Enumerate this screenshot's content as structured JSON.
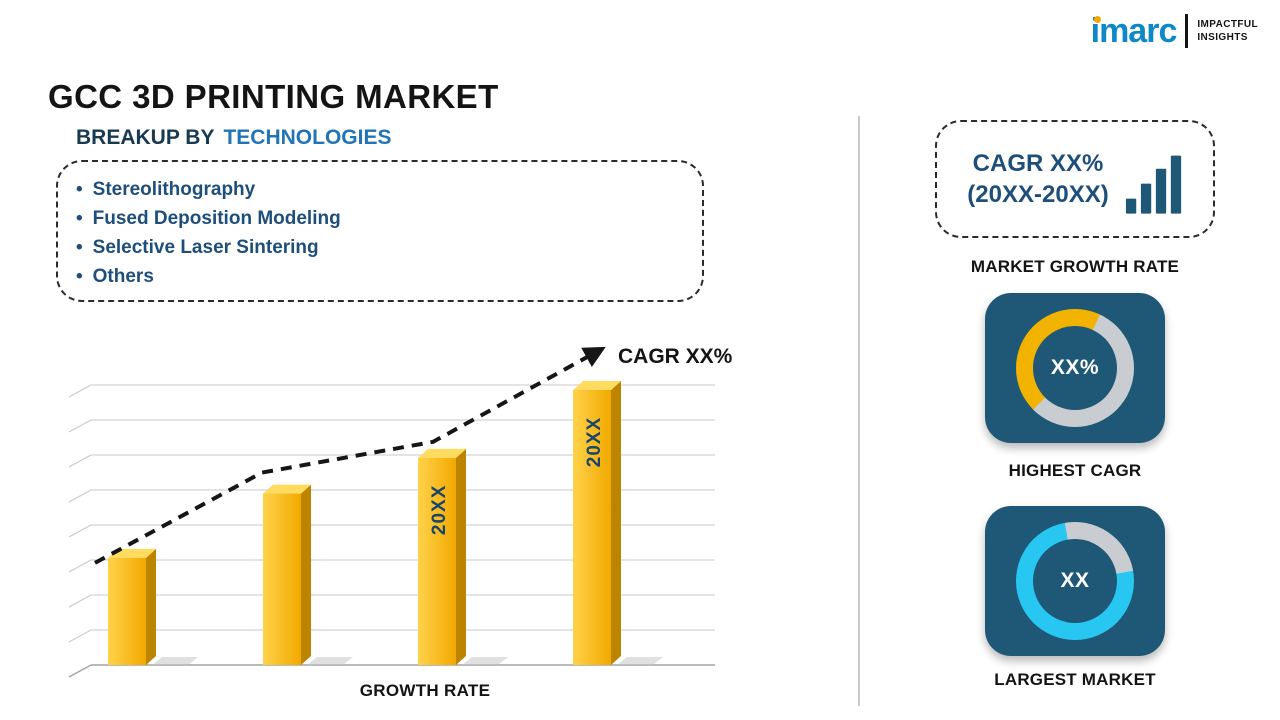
{
  "logo": {
    "brand": "imarc",
    "tagline_top": "IMPACTFUL",
    "tagline_bottom": "INSIGHTS"
  },
  "page_title": "GCC 3D PRINTING MARKET",
  "breakup": {
    "heading_prefix": "BREAKUP BY",
    "heading_highlight": "TECHNOLOGIES",
    "items": [
      "Stereolithography",
      "Fused Deposition Modeling",
      "Selective Laser Sintering",
      "Others"
    ]
  },
  "chart_data": {
    "type": "bar",
    "title": "",
    "bar_labels": [
      "",
      "",
      "20XX",
      "20XX"
    ],
    "values": [
      30,
      48,
      58,
      77
    ],
    "xlabel": "GROWTH RATE",
    "ylabel": "",
    "trend_label": "CAGR XX%",
    "bar_color": "#FFC000",
    "grid": true,
    "legend": false
  },
  "sidebar": {
    "growth_box": {
      "line1": "CAGR XX%",
      "line2": "(20XX-20XX)",
      "icon": "bar-chart-icon",
      "caption": "MARKET GROWTH RATE"
    },
    "highest_cagr": {
      "center_text": "XX%",
      "caption": "HIGHEST CAGR",
      "arc_color": "#F2B200",
      "track_color": "#C9CDD2",
      "arc_start_deg": 225,
      "arc_sweep_deg": 160
    },
    "largest_market": {
      "center_text": "XX",
      "caption": "LARGEST MARKET",
      "arc_color": "#27C7F2",
      "track_color": "#C9CDD2",
      "arc_start_deg": 80,
      "arc_sweep_deg": 270
    }
  },
  "colors": {
    "accent_blue": "#2274B5",
    "navy_text": "#1E4E7A",
    "card_bg": "#1E5876",
    "bar_gold": "#FFC000",
    "logo_blue": "#0E88C9",
    "logo_dot": "#F5A800",
    "divider": "#C9C9C9"
  }
}
